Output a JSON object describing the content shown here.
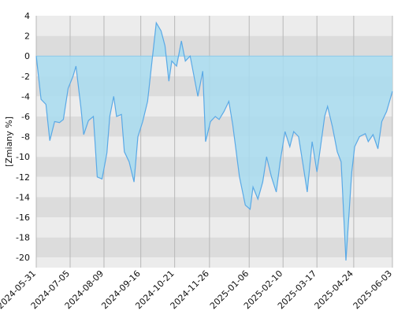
{
  "chart_data": {
    "type": "area",
    "ylabel": "[Zmiany %]",
    "ylim": [
      -21,
      4
    ],
    "y_ticks": [
      4,
      2,
      0,
      -2,
      -4,
      -6,
      -8,
      -10,
      -12,
      -14,
      -16,
      -18,
      -20
    ],
    "x_ticks": [
      "2024-05-31",
      "2024-07-05",
      "2024-08-09",
      "2024-09-16",
      "2024-10-21",
      "2024-11-26",
      "2025-01-06",
      "2025-02-10",
      "2025-03-17",
      "2025-04-24",
      "2025-06-03"
    ],
    "grid": true,
    "baseline": 0,
    "colors": {
      "line": "#5aa9e6",
      "fill": "#a8dcf0",
      "band_light": "#ececec",
      "band_dark": "#dcdcdc",
      "zero_line": "#8cc8e8"
    },
    "series": [
      {
        "x": [
          "2024-05-31",
          "2024-06-05",
          "2024-06-10",
          "2024-06-14",
          "2024-06-19",
          "2024-06-24",
          "2024-06-28",
          "2024-07-03",
          "2024-07-08",
          "2024-07-11",
          "2024-07-16",
          "2024-07-19",
          "2024-07-24",
          "2024-07-29",
          "2024-08-02",
          "2024-08-07",
          "2024-08-12",
          "2024-08-15",
          "2024-08-19",
          "2024-08-22",
          "2024-08-27",
          "2024-08-30",
          "2024-09-04",
          "2024-09-09",
          "2024-09-13",
          "2024-09-18",
          "2024-09-23",
          "2024-09-27",
          "2024-10-02",
          "2024-10-07",
          "2024-10-11",
          "2024-10-15",
          "2024-10-18",
          "2024-10-23",
          "2024-10-28",
          "2024-11-01",
          "2024-11-06",
          "2024-11-11",
          "2024-11-14",
          "2024-11-19",
          "2024-11-22",
          "2024-11-27",
          "2024-12-02",
          "2024-12-06",
          "2024-12-11",
          "2024-12-16",
          "2024-12-20",
          "2024-12-27",
          "2025-01-02",
          "2025-01-07",
          "2025-01-10",
          "2025-01-15",
          "2025-01-20",
          "2025-01-24",
          "2025-01-29",
          "2025-02-03",
          "2025-02-07",
          "2025-02-12",
          "2025-02-17",
          "2025-02-21",
          "2025-02-26",
          "2025-03-03",
          "2025-03-07",
          "2025-03-12",
          "2025-03-17",
          "2025-03-20",
          "2025-03-25",
          "2025-03-28",
          "2025-04-02",
          "2025-04-07",
          "2025-04-11",
          "2025-04-16",
          "2025-04-22",
          "2025-04-25",
          "2025-04-30",
          "2025-05-06",
          "2025-05-09",
          "2025-05-14",
          "2025-05-19",
          "2025-05-23",
          "2025-05-28",
          "2025-06-03"
        ],
        "values": [
          0.0,
          -4.3,
          -4.8,
          -8.4,
          -6.5,
          -6.6,
          -6.3,
          -3.2,
          -2.0,
          -1.0,
          -5.0,
          -7.8,
          -6.4,
          -6.0,
          -12.0,
          -12.2,
          -9.6,
          -6.0,
          -4.0,
          -6.0,
          -5.8,
          -9.5,
          -10.5,
          -12.5,
          -8.0,
          -6.5,
          -4.5,
          -1.0,
          3.3,
          2.5,
          1.0,
          -2.5,
          -0.5,
          -1.0,
          1.5,
          -0.5,
          0.0,
          -2.5,
          -4.0,
          -1.5,
          -8.5,
          -6.5,
          -6.0,
          -6.3,
          -5.5,
          -4.5,
          -6.8,
          -12.0,
          -14.8,
          -15.2,
          -13.0,
          -14.2,
          -12.5,
          -10.0,
          -12.0,
          -13.5,
          -10.5,
          -7.5,
          -9.0,
          -7.5,
          -8.0,
          -11.0,
          -13.5,
          -8.5,
          -11.5,
          -9.5,
          -6.0,
          -5.0,
          -7.0,
          -9.5,
          -10.5,
          -20.3,
          -11.5,
          -9.0,
          -8.0,
          -7.7,
          -8.5,
          -7.8,
          -9.2,
          -6.5,
          -5.5,
          -3.5
        ]
      }
    ]
  }
}
